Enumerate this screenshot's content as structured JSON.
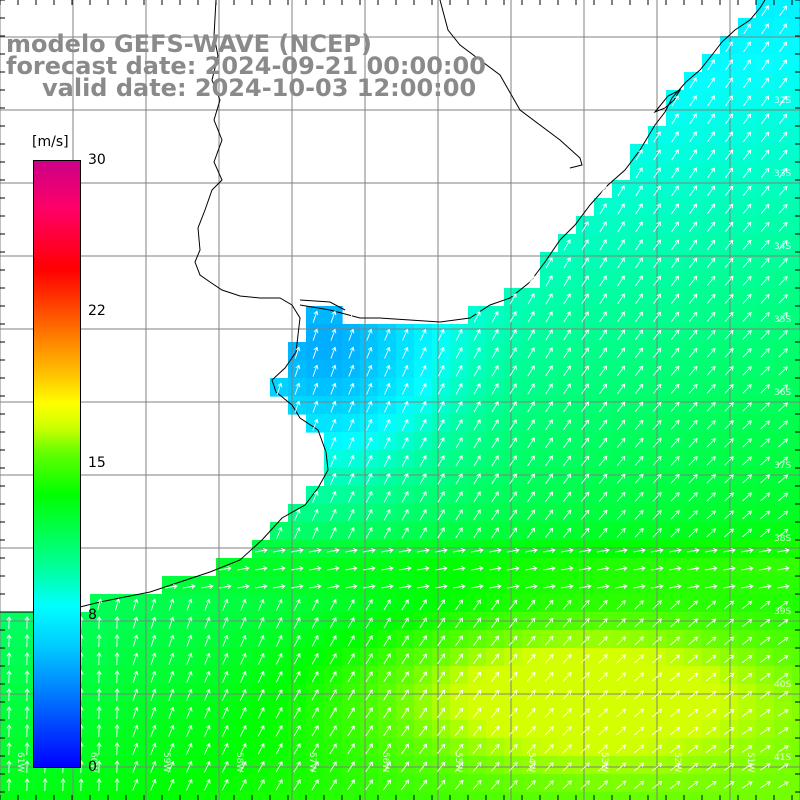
{
  "header": {
    "model_line": "modelo GEFS-WAVE (NCEP)",
    "forecast_line": "forecast date: 2024-09-21 00:00:00",
    "valid_line": "valid date: 2024-10-03 12:00:00"
  },
  "colorbar": {
    "unit": "[m/s]",
    "ticks": [
      "30",
      "22",
      "15",
      "8",
      "0"
    ],
    "min": 0,
    "max": 30
  },
  "map": {
    "longitude_labels": [
      "61W",
      "60W",
      "59W",
      "58W",
      "57W",
      "56W",
      "55W",
      "54W",
      "53W",
      "52W",
      "51W"
    ],
    "latitude_labels": [
      "32S",
      "33S",
      "34S",
      "35S",
      "36S",
      "37S",
      "38S",
      "39S",
      "40S",
      "41S"
    ],
    "colors": {
      "land": "#ffffff",
      "grid": "#808080",
      "coast": "#000000",
      "arrows": "#ffffff",
      "title": "#8a8a8a"
    }
  }
}
